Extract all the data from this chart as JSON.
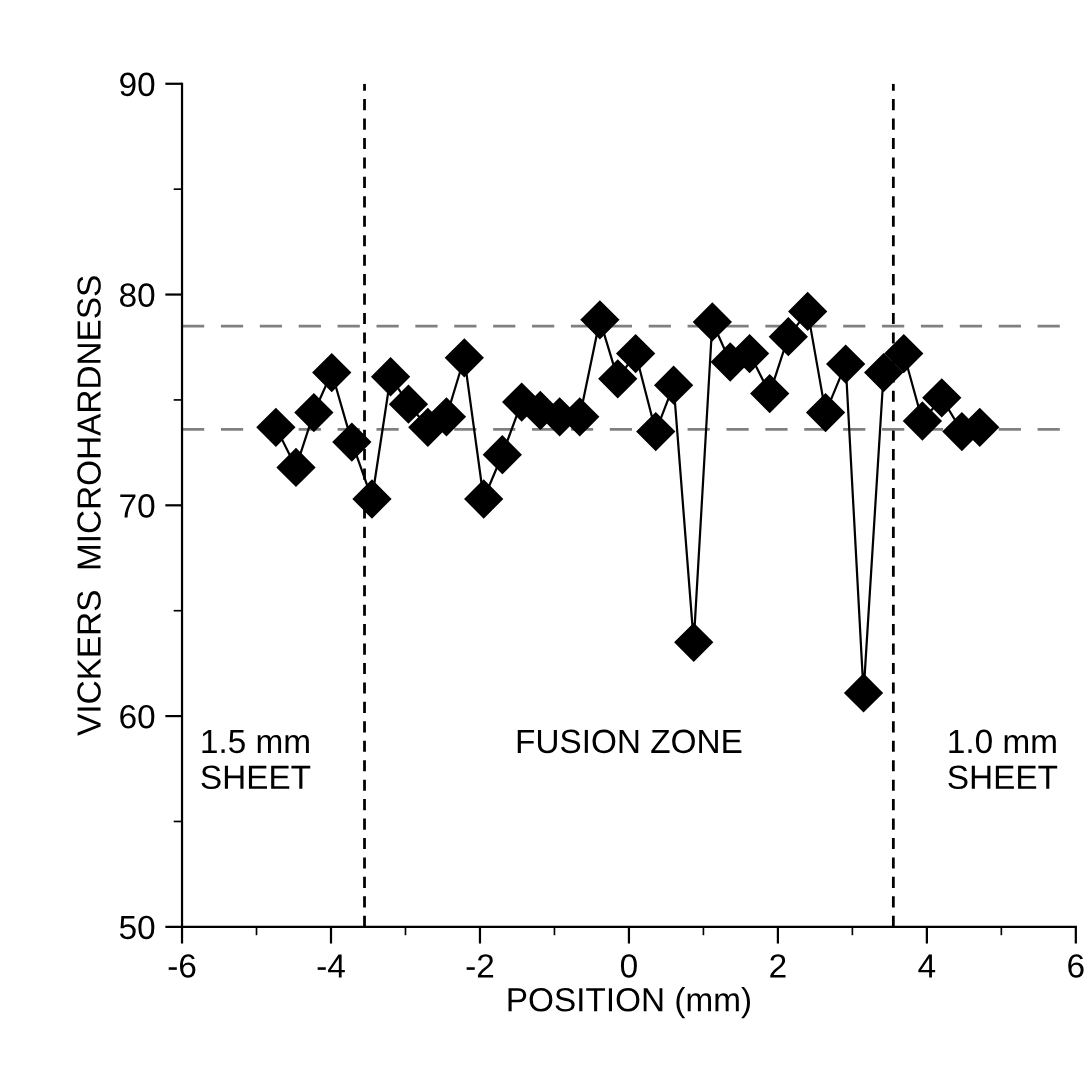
{
  "chart_data": {
    "type": "line",
    "xlabel": "POSITION (mm)",
    "ylabel": "VICKERS  MICROHARDNESS",
    "x": [
      -4.74,
      -4.47,
      -4.23,
      -3.99,
      -3.72,
      -3.45,
      -3.2,
      -2.96,
      -2.7,
      -2.45,
      -2.21,
      -1.95,
      -1.7,
      -1.44,
      -1.19,
      -0.93,
      -0.66,
      -0.39,
      -0.15,
      0.09,
      0.36,
      0.6,
      0.87,
      1.12,
      1.36,
      1.62,
      1.89,
      2.14,
      2.4,
      2.64,
      2.91,
      3.15,
      3.42,
      3.69,
      3.94,
      4.2,
      4.47,
      4.71
    ],
    "series": [
      {
        "color": "#000000",
        "values": [
          73.7,
          71.8,
          74.4,
          76.3,
          73.0,
          70.3,
          76.1,
          74.8,
          73.7,
          74.2,
          77.0,
          70.3,
          72.4,
          74.9,
          74.5,
          74.2,
          74.2,
          78.8,
          76.0,
          77.2,
          73.5,
          75.7,
          63.5,
          78.7,
          76.8,
          77.2,
          75.3,
          78.0,
          79.2,
          74.4,
          76.7,
          61.1,
          76.3,
          77.2,
          74.0,
          75.1,
          73.5,
          73.7
        ]
      }
    ],
    "marker": "diamond",
    "line_style": "solid",
    "grid": false,
    "legend": false,
    "xlim": [
      -6,
      6
    ],
    "xticks": [
      -6,
      -4,
      -2,
      0,
      2,
      4,
      6
    ],
    "ylim": [
      50,
      90
    ],
    "yticks": [
      50,
      60,
      70,
      80,
      90
    ],
    "ref_lines": [
      {
        "axis": "x",
        "value": -3.55,
        "color": "#000000",
        "line_style": "dashed"
      },
      {
        "axis": "x",
        "value": 3.55,
        "color": "#000000",
        "line_style": "dashed"
      },
      {
        "axis": "y",
        "value": 78.5,
        "color": "#808080",
        "line_style": "longdash"
      },
      {
        "axis": "y",
        "value": 73.6,
        "color": "#808080",
        "line_style": "longdash"
      }
    ],
    "annotations": [
      "1.5 mm\nSHEET",
      "FUSION ZONE",
      "1.0 mm\nSHEET"
    ]
  }
}
